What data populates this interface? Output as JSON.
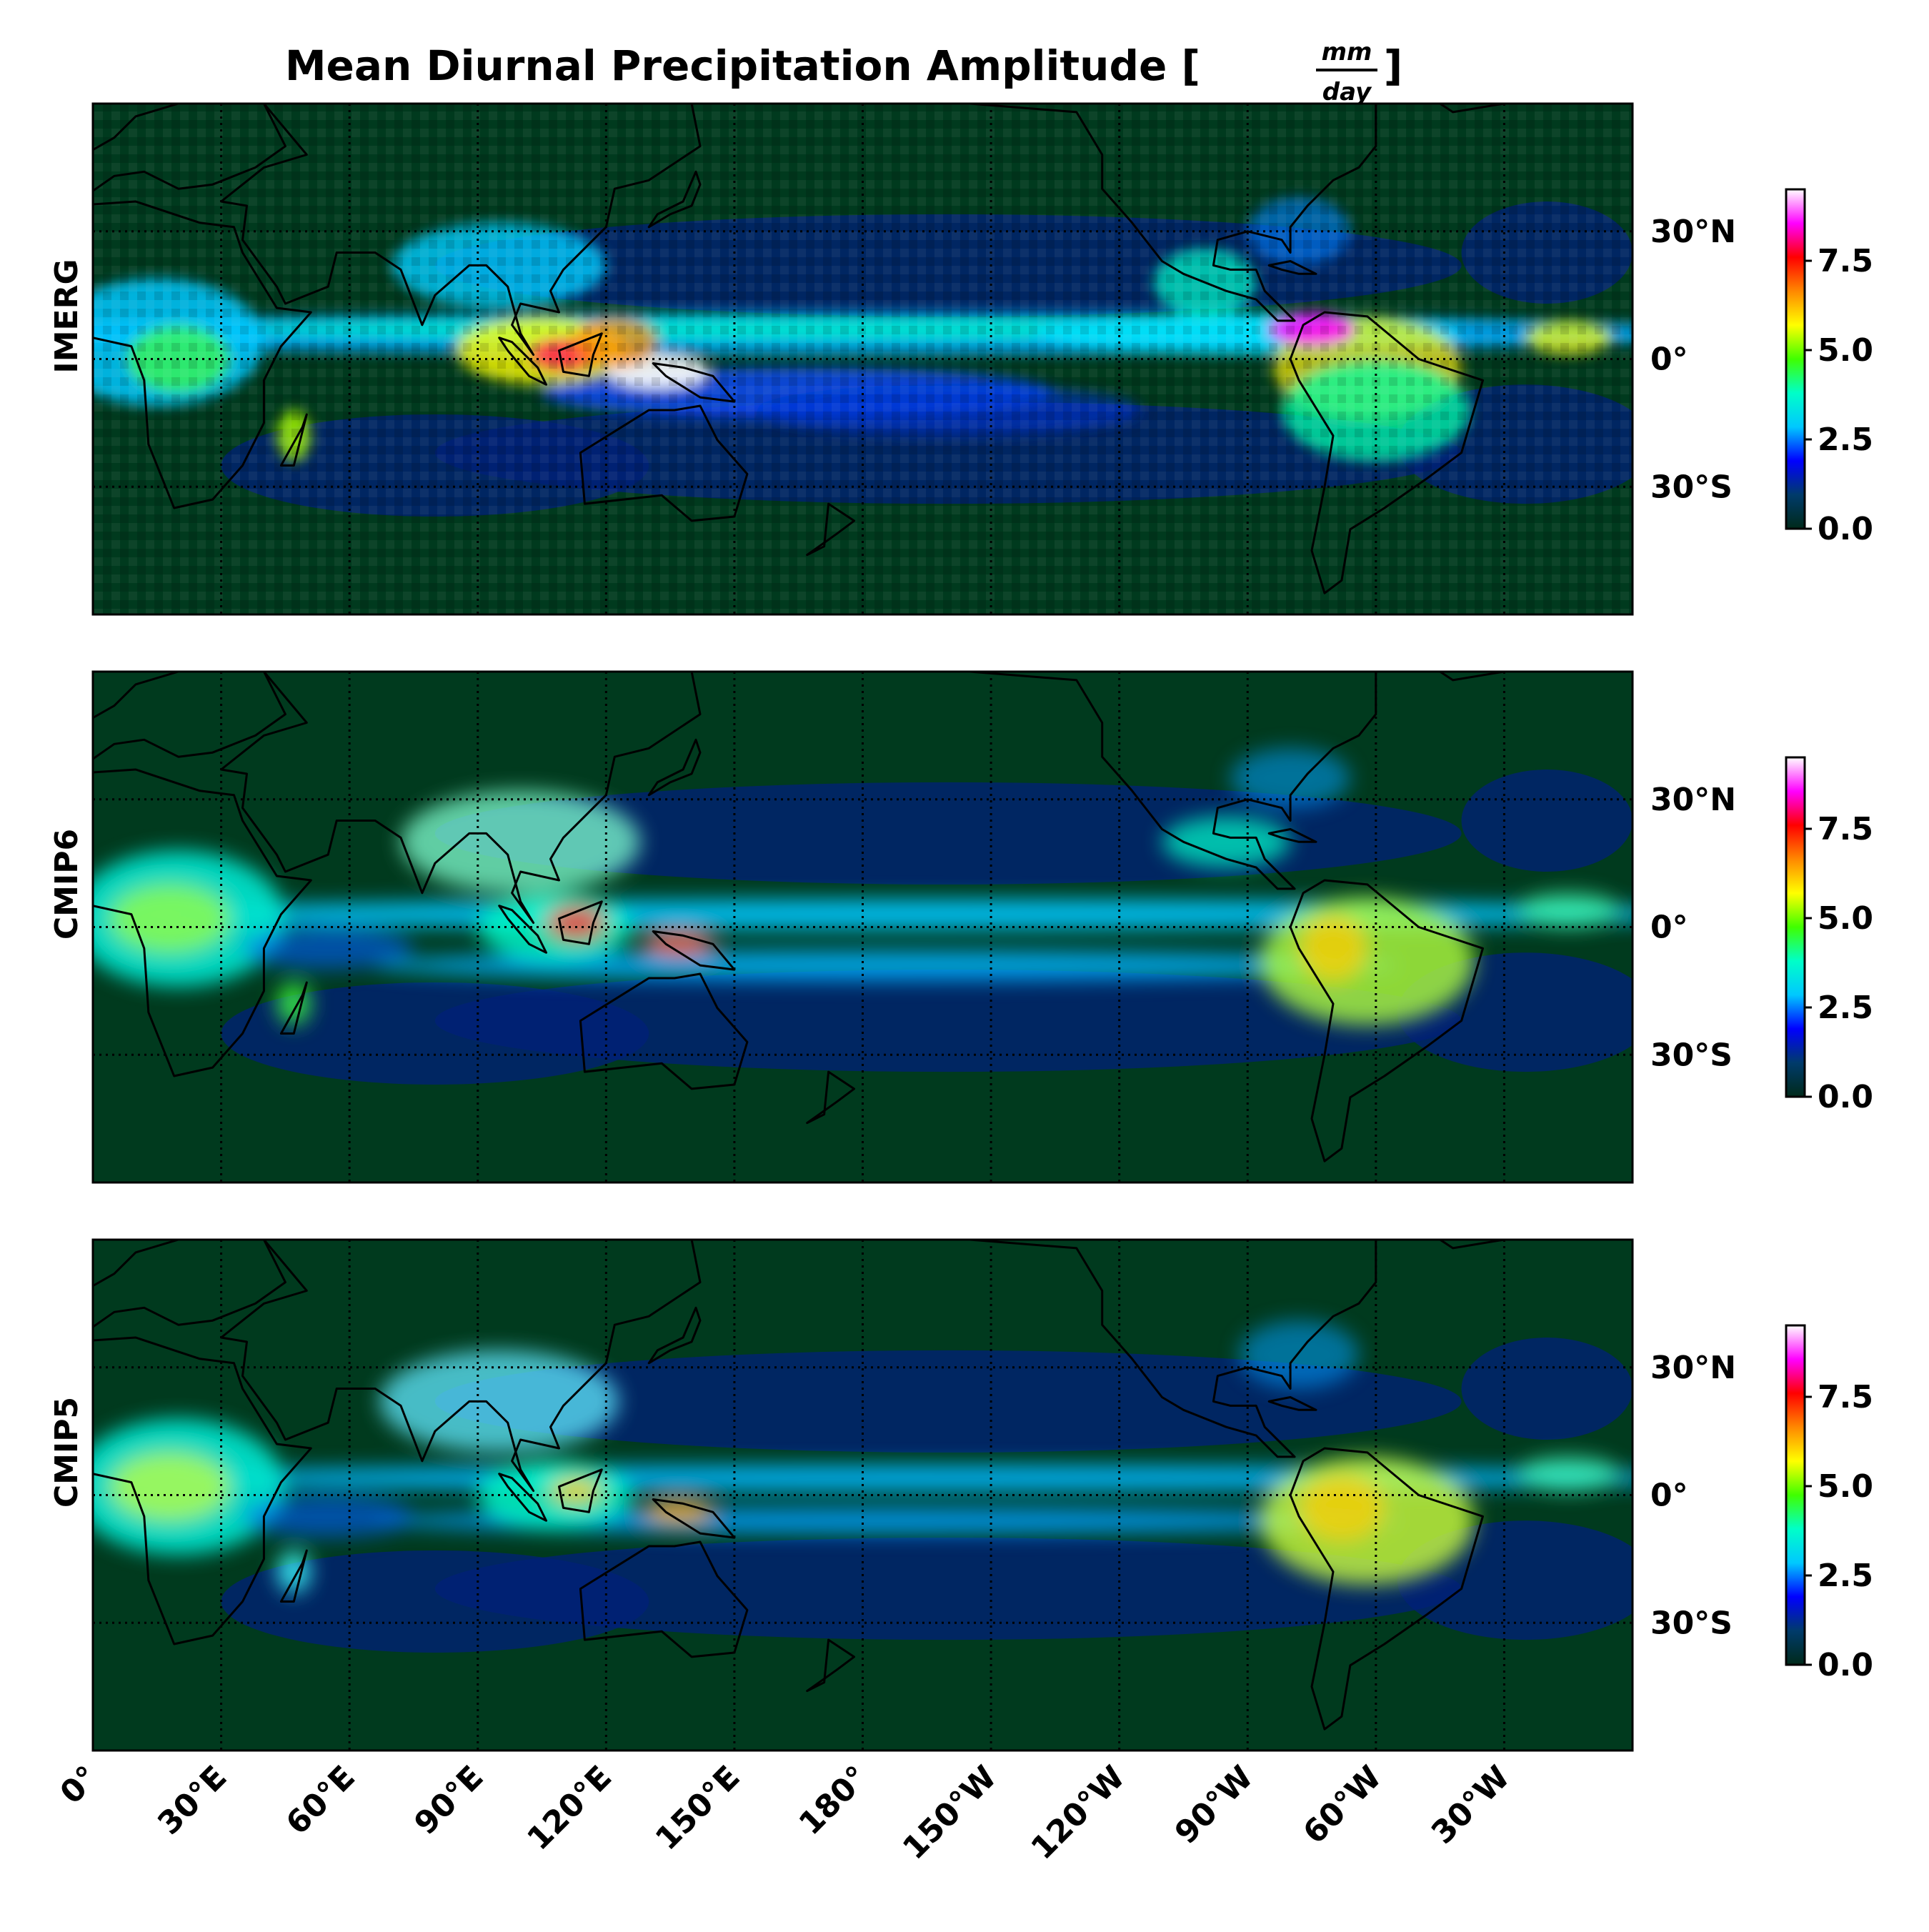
{
  "figure": {
    "title": "Mean Diurnal Precipitation Amplitude [",
    "title_frac_num": "mm",
    "title_frac_den": "day",
    "title_close": "]"
  },
  "panels": [
    {
      "id": "imerg",
      "label": "IMERG"
    },
    {
      "id": "cmip6",
      "label": "CMIP6"
    },
    {
      "id": "cmip5",
      "label": "CMIP5"
    }
  ],
  "lat_ticks": [
    {
      "value": 30,
      "label": "30°N"
    },
    {
      "value": 0,
      "label": "0°"
    },
    {
      "value": -30,
      "label": "30°S"
    }
  ],
  "lon_ticks": [
    {
      "value": 0,
      "label": "0°"
    },
    {
      "value": 30,
      "label": "30°E"
    },
    {
      "value": 60,
      "label": "60°E"
    },
    {
      "value": 90,
      "label": "90°E"
    },
    {
      "value": 120,
      "label": "120°E"
    },
    {
      "value": 150,
      "label": "150°E"
    },
    {
      "value": 180,
      "label": "180°"
    },
    {
      "value": 210,
      "label": "150°W"
    },
    {
      "value": 240,
      "label": "120°W"
    },
    {
      "value": 270,
      "label": "90°W"
    },
    {
      "value": 300,
      "label": "60°W"
    },
    {
      "value": 330,
      "label": "30°W"
    }
  ],
  "colorbar": {
    "ticks": [
      {
        "value": 0.0,
        "label": "0.0"
      },
      {
        "value": 2.5,
        "label": "2.5"
      },
      {
        "value": 5.0,
        "label": "5.0"
      },
      {
        "value": 7.5,
        "label": "7.5"
      }
    ],
    "vmin": 0.0,
    "vmax": 9.5,
    "colormap": [
      "#002a1a",
      "#003b6b",
      "#0000ff",
      "#00c8ff",
      "#00ffc8",
      "#40ff00",
      "#ffff00",
      "#ff8800",
      "#ff0000",
      "#ff00ff",
      "#ffffff"
    ]
  },
  "chart_data": {
    "type": "heatmap",
    "projection": "equirectangular",
    "lon_range": [
      0,
      360
    ],
    "lat_range": [
      -60,
      60
    ],
    "grid": true,
    "colors": {
      "background": "#003a1e",
      "coast": "#000000"
    }
  }
}
